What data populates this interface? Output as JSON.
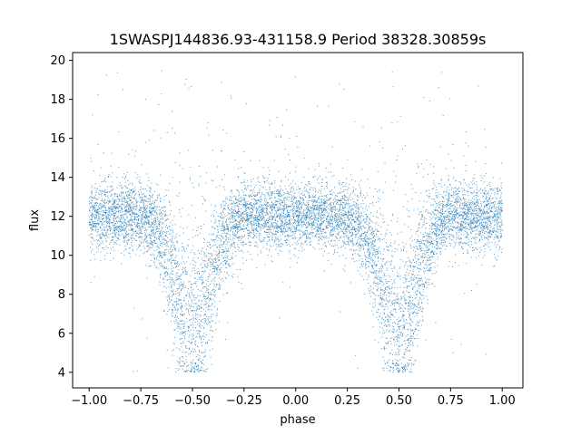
{
  "chart_data": {
    "type": "scatter",
    "title": "1SWASPJ144836.93-431158.9 Period 38328.30859s",
    "xlabel": "phase",
    "ylabel": "flux",
    "xlim": [
      -1.08,
      1.1
    ],
    "ylim": [
      3.2,
      20.4
    ],
    "xticks": [
      -1.0,
      -0.75,
      -0.5,
      -0.25,
      0.0,
      0.25,
      0.5,
      0.75,
      1.0
    ],
    "xtick_labels": [
      "−1.00",
      "−0.75",
      "−0.50",
      "−0.25",
      "0.00",
      "0.25",
      "0.50",
      "0.75",
      "1.00"
    ],
    "yticks": [
      4,
      6,
      8,
      10,
      12,
      14,
      16,
      18,
      20
    ],
    "ytick_labels": [
      "4",
      "6",
      "8",
      "10",
      "12",
      "14",
      "16",
      "18",
      "20"
    ],
    "grid": false,
    "series_color": "#1f77b4",
    "x_range": [
      -1.0,
      1.0
    ],
    "baseline_flux": 12.0,
    "baseline_spread": 0.85,
    "eclipses": [
      {
        "phase": -0.5,
        "min_flux": 6.5,
        "half_width": 0.13
      },
      {
        "phase": 0.5,
        "min_flux": 6.5,
        "half_width": 0.13
      }
    ],
    "flux_extent": [
      4.0,
      19.7
    ]
  }
}
